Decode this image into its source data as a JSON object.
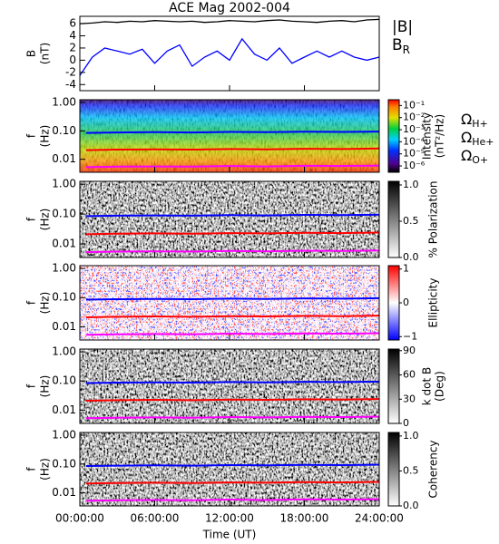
{
  "chart_data": [
    {
      "type": "line",
      "title": "ACE Mag 2002-004",
      "ylabel": [
        "B",
        "(nT)"
      ],
      "xlim": [
        0,
        24
      ],
      "ylim": [
        -5,
        7.2
      ],
      "yticks": [
        -4,
        -2,
        0,
        2,
        4,
        6
      ],
      "x": [
        0,
        1,
        2,
        3,
        4,
        5,
        6,
        7,
        8,
        9,
        10,
        11,
        12,
        13,
        14,
        15,
        16,
        17,
        18,
        19,
        20,
        21,
        22,
        23,
        24
      ],
      "series": [
        {
          "name": "|B|",
          "color": "#000000",
          "values": [
            6,
            6.1,
            6.3,
            6.2,
            6.4,
            6.3,
            6.5,
            6.4,
            6.3,
            6.4,
            6.2,
            6.3,
            6.5,
            6.4,
            6.3,
            6.5,
            6.6,
            6.4,
            6.3,
            6.2,
            6.4,
            6.5,
            6.3,
            6.6,
            6.7
          ]
        },
        {
          "name": "B",
          "subscript": "R",
          "color": "#0000ff",
          "values": [
            -2.5,
            0.5,
            2,
            1.5,
            1,
            1.8,
            -0.5,
            1.5,
            2.5,
            -1,
            0.5,
            1.5,
            0,
            3.5,
            1,
            0,
            2,
            -0.5,
            0.5,
            1.5,
            0.5,
            1.5,
            0.5,
            0,
            0.5
          ]
        }
      ]
    },
    {
      "type": "spectrogram",
      "colormap": "rainbow",
      "ylabel": [
        "f",
        "(Hz)"
      ],
      "log_y": true,
      "xlim": [
        0,
        24
      ],
      "ylim": [
        0.0035,
        1.25
      ],
      "yticks": [
        {
          "value": 1,
          "label": "1.00"
        },
        {
          "value": 0.1,
          "label": "0.10"
        },
        {
          "value": 0.01,
          "label": "0.01"
        }
      ],
      "colorbar": {
        "label": [
          "Intensity",
          "(nT²/Hz)"
        ],
        "log": true,
        "clim": [
          3e-07,
          0.3
        ],
        "ticks": [
          {
            "value": 0.1,
            "label": "10⁻¹"
          },
          {
            "value": 0.01,
            "label": "10⁻²"
          },
          {
            "value": 0.001,
            "label": "10⁻³"
          },
          {
            "value": 0.0001,
            "label": "10⁻⁴"
          },
          {
            "value": 1e-05,
            "label": "10⁻⁵"
          },
          {
            "value": 1e-06,
            "label": "10⁻⁶"
          }
        ]
      },
      "x": [
        0.5,
        3,
        6,
        9,
        12,
        15,
        18,
        21,
        24
      ],
      "series": [
        {
          "name": "Ω",
          "subscript": "H+",
          "color": "#0000ff",
          "values": [
            0.085,
            0.088,
            0.09,
            0.088,
            0.092,
            0.09,
            0.094,
            0.092,
            0.095
          ]
        },
        {
          "name": "Ω",
          "subscript": "He+",
          "color": "#ff0000",
          "values": [
            0.021,
            0.022,
            0.0225,
            0.022,
            0.023,
            0.0225,
            0.0235,
            0.023,
            0.024
          ]
        },
        {
          "name": "Ω",
          "subscript": "O+",
          "color": "#ff00ff",
          "values": [
            0.0053,
            0.0055,
            0.0056,
            0.0055,
            0.0058,
            0.0056,
            0.0059,
            0.0058,
            0.006
          ]
        }
      ]
    },
    {
      "type": "spectrogram",
      "colormap": "gray",
      "ylabel": [
        "f",
        "(Hz)"
      ],
      "log_y": true,
      "xlim": [
        0,
        24
      ],
      "ylim": [
        0.0035,
        1.25
      ],
      "yticks": [
        {
          "value": 1,
          "label": "1.00"
        },
        {
          "value": 0.1,
          "label": "0.10"
        },
        {
          "value": 0.01,
          "label": "0.01"
        }
      ],
      "colorbar": {
        "label": [
          "% Polarization"
        ],
        "clim": [
          0,
          1.05
        ],
        "ticks": [
          {
            "value": 1,
            "label": "1.0"
          },
          {
            "value": 0.5,
            "label": "0.5"
          },
          {
            "value": 0,
            "label": "0.0"
          }
        ]
      },
      "x": [
        0.5,
        3,
        6,
        9,
        12,
        15,
        18,
        21,
        24
      ],
      "series": [
        {
          "color": "#0000ff",
          "values": [
            0.085,
            0.088,
            0.09,
            0.088,
            0.092,
            0.09,
            0.094,
            0.092,
            0.095
          ]
        },
        {
          "color": "#ff0000",
          "values": [
            0.021,
            0.022,
            0.0225,
            0.022,
            0.023,
            0.0225,
            0.0235,
            0.023,
            0.024
          ]
        },
        {
          "color": "#ff00ff",
          "values": [
            0.0053,
            0.0055,
            0.0056,
            0.0055,
            0.0058,
            0.0056,
            0.0059,
            0.0058,
            0.006
          ]
        }
      ]
    },
    {
      "type": "spectrogram",
      "colormap": "bwr",
      "ylabel": [
        "f",
        "(Hz)"
      ],
      "log_y": true,
      "xlim": [
        0,
        24
      ],
      "ylim": [
        0.0035,
        1.25
      ],
      "yticks": [
        {
          "value": 1,
          "label": "1.00"
        },
        {
          "value": 0.1,
          "label": "0.10"
        },
        {
          "value": 0.01,
          "label": "0.01"
        }
      ],
      "colorbar": {
        "label": [
          "Ellipticity"
        ],
        "clim": [
          -1.1,
          1.1
        ],
        "ticks": [
          1,
          0,
          {
            "value": -1,
            "label": "−1"
          }
        ]
      },
      "x": [
        0.5,
        3,
        6,
        9,
        12,
        15,
        18,
        21,
        24
      ],
      "series": [
        {
          "color": "#0000ff",
          "values": [
            0.085,
            0.088,
            0.09,
            0.088,
            0.092,
            0.09,
            0.094,
            0.092,
            0.095
          ]
        },
        {
          "color": "#ff0000",
          "values": [
            0.021,
            0.022,
            0.0225,
            0.022,
            0.023,
            0.0225,
            0.0235,
            0.023,
            0.024
          ]
        },
        {
          "color": "#ff00ff",
          "values": [
            0.0053,
            0.0055,
            0.0056,
            0.0055,
            0.0058,
            0.0056,
            0.0059,
            0.0058,
            0.006
          ]
        }
      ]
    },
    {
      "type": "spectrogram",
      "colormap": "gray",
      "ylabel": [
        "f",
        "(Hz)"
      ],
      "log_y": true,
      "xlim": [
        0,
        24
      ],
      "ylim": [
        0.0035,
        1.25
      ],
      "yticks": [
        {
          "value": 1,
          "label": "1.00"
        },
        {
          "value": 0.1,
          "label": "0.10"
        },
        {
          "value": 0.01,
          "label": "0.01"
        }
      ],
      "colorbar": {
        "label": [
          "k dot B",
          "(Deg)"
        ],
        "clim": [
          0,
          92
        ],
        "ticks": [
          90,
          60,
          30,
          0
        ]
      },
      "x": [
        0.5,
        3,
        6,
        9,
        12,
        15,
        18,
        21,
        24
      ],
      "series": [
        {
          "color": "#0000ff",
          "values": [
            0.085,
            0.088,
            0.09,
            0.088,
            0.092,
            0.09,
            0.094,
            0.092,
            0.095
          ]
        },
        {
          "color": "#ff0000",
          "values": [
            0.021,
            0.022,
            0.0225,
            0.022,
            0.023,
            0.0225,
            0.0235,
            0.023,
            0.024
          ]
        },
        {
          "color": "#ff00ff",
          "values": [
            0.0053,
            0.0055,
            0.0056,
            0.0055,
            0.0058,
            0.0056,
            0.0059,
            0.0058,
            0.006
          ]
        }
      ]
    },
    {
      "type": "spectrogram",
      "colormap": "gray",
      "ylabel": [
        "f",
        "(Hz)"
      ],
      "log_y": true,
      "xlim": [
        0,
        24
      ],
      "ylim": [
        0.0035,
        1.25
      ],
      "yticks": [
        {
          "value": 1,
          "label": "1.00"
        },
        {
          "value": 0.1,
          "label": "0.10"
        },
        {
          "value": 0.01,
          "label": "0.01"
        }
      ],
      "colorbar": {
        "label": [
          "Coherency"
        ],
        "clim": [
          0,
          1.05
        ],
        "ticks": [
          {
            "value": 1,
            "label": "1.0"
          },
          {
            "value": 0.5,
            "label": "0.5"
          },
          {
            "value": 0,
            "label": "0.0"
          }
        ]
      },
      "x": [
        0.5,
        3,
        6,
        9,
        12,
        15,
        18,
        21,
        24
      ],
      "series": [
        {
          "color": "#0000ff",
          "values": [
            0.085,
            0.088,
            0.09,
            0.088,
            0.092,
            0.09,
            0.094,
            0.092,
            0.095
          ]
        },
        {
          "color": "#ff0000",
          "values": [
            0.021,
            0.022,
            0.0225,
            0.022,
            0.023,
            0.0225,
            0.0235,
            0.023,
            0.024
          ]
        },
        {
          "color": "#ff00ff",
          "values": [
            0.0053,
            0.0055,
            0.0056,
            0.0055,
            0.0058,
            0.0056,
            0.0059,
            0.0058,
            0.006
          ]
        }
      ],
      "xlabel": "Time (UT)",
      "xticks": [
        {
          "value": 0,
          "label": "00:00:00"
        },
        {
          "value": 6,
          "label": "06:00:00"
        },
        {
          "value": 12,
          "label": "12:00:00"
        },
        {
          "value": 18,
          "label": "18:00:00"
        },
        {
          "value": 24,
          "label": "24:00:00"
        }
      ]
    }
  ]
}
